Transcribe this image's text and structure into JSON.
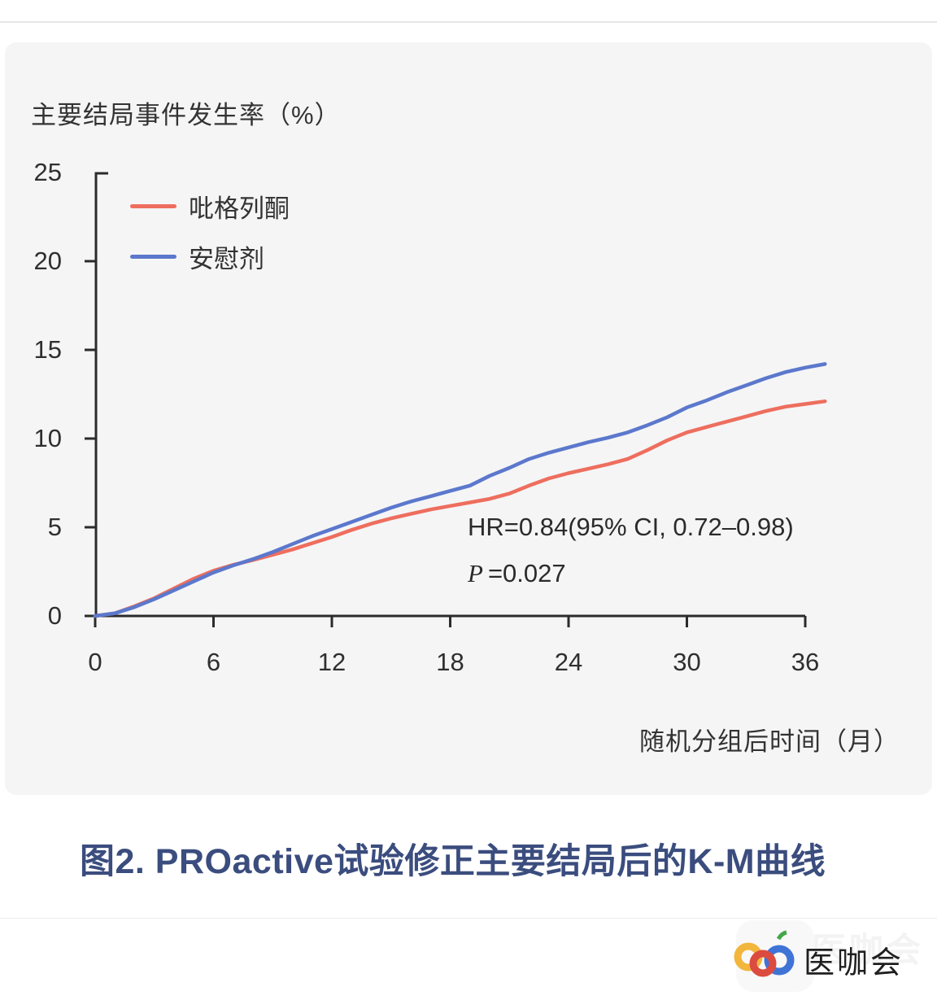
{
  "chart_panel": {
    "title": "主要结局事件发生率（%）",
    "legend": [
      {
        "label": "吡格列酮",
        "color": "#ee6e5e"
      },
      {
        "label": "安慰剂",
        "color": "#5b78cc"
      }
    ],
    "annotation": {
      "line1": "HR=0.84(95% CI, 0.72–0.98)",
      "p_italic": "P",
      "p_rest": "=0.027"
    },
    "x_axis_label": "随机分组后时间（月）"
  },
  "chart_data": {
    "type": "line",
    "title": "主要结局事件发生率（%）",
    "xlabel": "随机分组后时间（月）",
    "ylabel": "主要结局事件发生率（%）",
    "x_ticks": [
      0,
      6,
      12,
      18,
      24,
      30,
      36
    ],
    "y_ticks": [
      0,
      5,
      10,
      15,
      20,
      25
    ],
    "xlim": [
      0,
      37
    ],
    "ylim": [
      0,
      25
    ],
    "grid": false,
    "legend_position": "upper-left",
    "annotation": "HR=0.84(95% CI, 0.72–0.98); P=0.027",
    "x": [
      0,
      1,
      2,
      3,
      4,
      5,
      6,
      7,
      8,
      9,
      10,
      11,
      12,
      13,
      14,
      15,
      16,
      17,
      18,
      19,
      20,
      21,
      22,
      23,
      24,
      25,
      26,
      27,
      28,
      29,
      30,
      31,
      32,
      33,
      34,
      35,
      36,
      37
    ],
    "series": [
      {
        "name": "吡格列酮",
        "color": "#ee6e5e",
        "y": [
          0,
          0.15,
          0.55,
          1.0,
          1.55,
          2.1,
          2.55,
          2.88,
          3.15,
          3.45,
          3.75,
          4.1,
          4.45,
          4.85,
          5.2,
          5.5,
          5.75,
          6.0,
          6.2,
          6.4,
          6.6,
          6.9,
          7.35,
          7.75,
          8.05,
          8.3,
          8.55,
          8.85,
          9.35,
          9.9,
          10.35,
          10.65,
          10.95,
          11.25,
          11.55,
          11.8,
          11.95,
          12.1
        ]
      },
      {
        "name": "安慰剂",
        "color": "#5b78cc",
        "y": [
          0,
          0.15,
          0.5,
          0.95,
          1.45,
          1.95,
          2.45,
          2.85,
          3.2,
          3.6,
          4.05,
          4.5,
          4.9,
          5.3,
          5.7,
          6.1,
          6.45,
          6.75,
          7.05,
          7.35,
          7.9,
          8.35,
          8.85,
          9.2,
          9.5,
          9.8,
          10.05,
          10.35,
          10.75,
          11.2,
          11.75,
          12.15,
          12.6,
          13.0,
          13.4,
          13.75,
          14.0,
          14.2
        ]
      }
    ]
  },
  "caption": "图2. PROactive试验修正主要结局后的K-M曲线",
  "footer": {
    "brand": "医咖会",
    "watermark": "医咖会",
    "logo_colors": {
      "yellow": "#f2b63c",
      "red": "#dc4b3f",
      "blue": "#3f74d6",
      "green": "#43a847"
    }
  }
}
